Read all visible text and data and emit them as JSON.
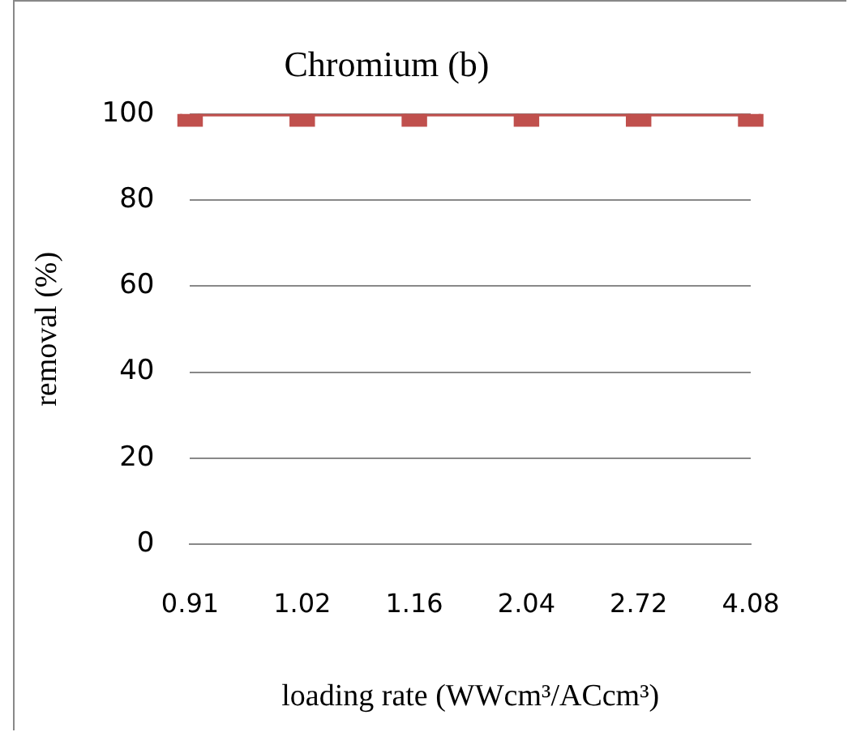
{
  "chart_data": {
    "type": "line",
    "title": "Chromium (b)",
    "xlabel": "loading rate (WWcm³/ACcm³)",
    "ylabel": "removal (%)",
    "categories": [
      "0.91",
      "1.02",
      "1.16",
      "2.04",
      "2.72",
      "4.08"
    ],
    "series": [
      {
        "color": "#c0504d",
        "values": [
          100,
          100,
          100,
          100,
          100,
          100
        ]
      }
    ],
    "ylim": [
      0,
      100
    ],
    "yticks": [
      0,
      20,
      40,
      60,
      80,
      100
    ],
    "grid": "y",
    "legend": false,
    "marker": "square",
    "line_style": "solid"
  }
}
